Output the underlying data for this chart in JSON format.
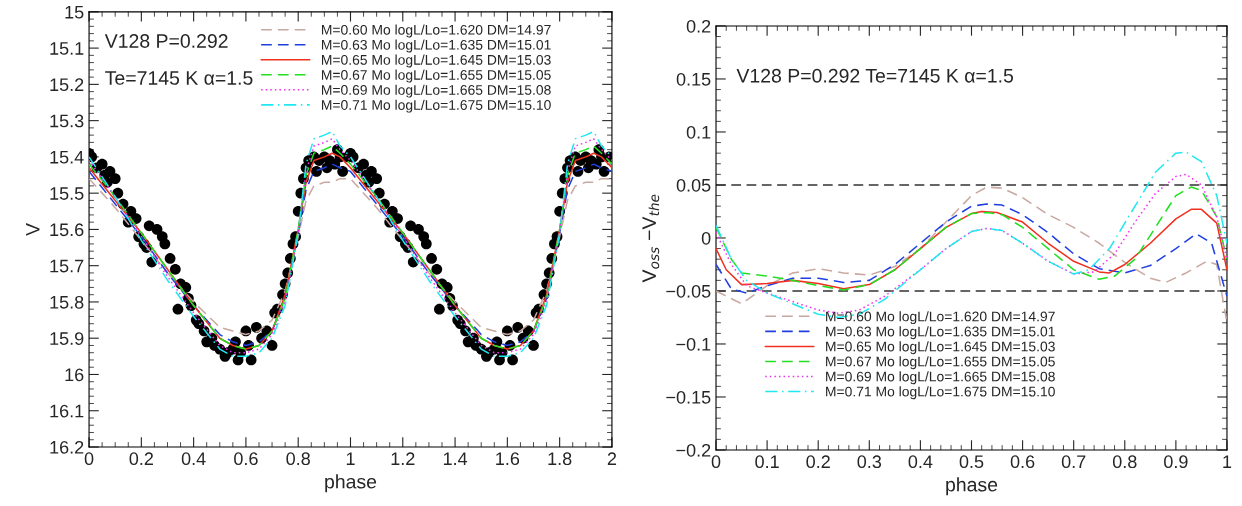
{
  "chart_data": [
    {
      "type": "line",
      "xlabel": "phase",
      "ylabel": "V",
      "xlim": [
        0,
        2
      ],
      "ylim": [
        16.2,
        15
      ],
      "xticks": [
        0,
        0.2,
        0.4,
        0.6,
        0.8,
        1,
        1.2,
        1.4,
        1.6,
        1.8,
        2
      ],
      "yticks": [
        15,
        15.1,
        15.2,
        15.3,
        15.4,
        15.5,
        15.6,
        15.7,
        15.8,
        15.9,
        16,
        16.1,
        16.2
      ],
      "legend": "top right",
      "annotations": [
        "V128 P=0.292",
        "Te=7145 K α=1.5"
      ],
      "series": [
        {
          "type": "scatter",
          "color": "#000000",
          "marker": "circle",
          "x": [
            0.0,
            0.01,
            0.03,
            0.05,
            0.06,
            0.07,
            0.08,
            0.1,
            0.11,
            0.13,
            0.15,
            0.16,
            0.18,
            0.19,
            0.21,
            0.22,
            0.23,
            0.24,
            0.26,
            0.28,
            0.29,
            0.31,
            0.33,
            0.34,
            0.35,
            0.37,
            0.38,
            0.39,
            0.41,
            0.42,
            0.44,
            0.45,
            0.47,
            0.48,
            0.5,
            0.52,
            0.53,
            0.55,
            0.56,
            0.57,
            0.58,
            0.6,
            0.61,
            0.62,
            0.64,
            0.66,
            0.68,
            0.7,
            0.71,
            0.72,
            0.74,
            0.75,
            0.76,
            0.77,
            0.78,
            0.79,
            0.8,
            0.81,
            0.82,
            0.83,
            0.84,
            0.86,
            0.87,
            0.88,
            0.9,
            0.91,
            0.92,
            0.94,
            0.95,
            0.96,
            0.97,
            0.99,
            1.0,
            1.01,
            1.03,
            1.05,
            1.06,
            1.07,
            1.08,
            1.1,
            1.11,
            1.13,
            1.15,
            1.16,
            1.18,
            1.19,
            1.21,
            1.22,
            1.23,
            1.24,
            1.26,
            1.28,
            1.29,
            1.31,
            1.33,
            1.34,
            1.35,
            1.37,
            1.38,
            1.39,
            1.41,
            1.42,
            1.44,
            1.45,
            1.47,
            1.48,
            1.5,
            1.52,
            1.53,
            1.55,
            1.56,
            1.57,
            1.58,
            1.6,
            1.61,
            1.62,
            1.64,
            1.66,
            1.68,
            1.7,
            1.71,
            1.72,
            1.74,
            1.75,
            1.76,
            1.77,
            1.78,
            1.79,
            1.8,
            1.81,
            1.82,
            1.83,
            1.84,
            1.86,
            1.87,
            1.88,
            1.9,
            1.91,
            1.92,
            1.94,
            1.95,
            1.96,
            1.97,
            1.99
          ],
          "values": [
            15.39,
            15.4,
            15.43,
            15.42,
            15.45,
            15.47,
            15.44,
            15.46,
            15.5,
            15.53,
            15.58,
            15.55,
            15.57,
            15.62,
            15.64,
            15.65,
            15.59,
            15.69,
            15.6,
            15.62,
            15.64,
            15.68,
            15.71,
            15.82,
            15.75,
            15.76,
            15.79,
            15.81,
            15.85,
            15.86,
            15.88,
            15.91,
            15.9,
            15.92,
            15.93,
            15.95,
            15.94,
            15.93,
            15.91,
            15.96,
            15.94,
            15.88,
            15.92,
            15.96,
            15.87,
            15.9,
            15.88,
            15.92,
            15.83,
            15.82,
            15.78,
            15.75,
            15.72,
            15.68,
            15.64,
            15.62,
            15.55,
            15.5,
            15.46,
            15.43,
            15.41,
            15.4,
            15.44,
            15.41,
            15.4,
            15.43,
            15.41,
            15.42,
            15.38,
            15.4,
            15.44,
            15.4,
            15.39,
            15.4,
            15.43,
            15.42,
            15.45,
            15.47,
            15.44,
            15.46,
            15.5,
            15.53,
            15.58,
            15.55,
            15.57,
            15.62,
            15.64,
            15.65,
            15.59,
            15.69,
            15.6,
            15.62,
            15.64,
            15.68,
            15.71,
            15.82,
            15.75,
            15.76,
            15.79,
            15.81,
            15.85,
            15.86,
            15.88,
            15.91,
            15.9,
            15.92,
            15.93,
            15.95,
            15.94,
            15.93,
            15.91,
            15.96,
            15.94,
            15.88,
            15.92,
            15.96,
            15.87,
            15.9,
            15.88,
            15.92,
            15.83,
            15.82,
            15.78,
            15.75,
            15.72,
            15.68,
            15.64,
            15.62,
            15.55,
            15.5,
            15.46,
            15.43,
            15.41,
            15.4,
            15.44,
            15.41,
            15.4,
            15.43,
            15.41,
            15.42,
            15.38,
            15.4,
            15.44,
            15.4
          ]
        },
        {
          "name": "M=0.60 Mo logL/Lo=1.620 DM=14.97",
          "color": "#c8a8a0",
          "line_style": "dashed",
          "x": [
            0,
            0.1,
            0.2,
            0.3,
            0.4,
            0.5,
            0.55,
            0.6,
            0.65,
            0.7,
            0.75,
            0.8,
            0.83,
            0.86,
            0.9,
            0.93,
            0.96,
            1,
            1.1,
            1.2,
            1.3,
            1.4,
            1.5,
            1.55,
            1.6,
            1.65,
            1.7,
            1.75,
            1.8,
            1.83,
            1.86,
            1.9,
            1.93,
            1.96,
            2
          ],
          "values": [
            15.46,
            15.54,
            15.63,
            15.72,
            15.8,
            15.87,
            15.88,
            15.89,
            15.88,
            15.85,
            15.77,
            15.62,
            15.52,
            15.48,
            15.47,
            15.47,
            15.46,
            15.46,
            15.54,
            15.63,
            15.72,
            15.8,
            15.87,
            15.88,
            15.89,
            15.88,
            15.85,
            15.77,
            15.62,
            15.52,
            15.48,
            15.47,
            15.47,
            15.46,
            15.46
          ]
        },
        {
          "name": "M=0.63 Mo logL/Lo=1.635 DM=15.01",
          "color": "#1f3fe0",
          "line_style": "dashed",
          "x": [
            0,
            0.1,
            0.2,
            0.3,
            0.4,
            0.5,
            0.55,
            0.6,
            0.65,
            0.7,
            0.75,
            0.8,
            0.83,
            0.86,
            0.9,
            0.93,
            0.96,
            1,
            1.1,
            1.2,
            1.3,
            1.4,
            1.5,
            1.55,
            1.6,
            1.65,
            1.7,
            1.75,
            1.8,
            1.83,
            1.86,
            1.9,
            1.93,
            1.96,
            2
          ],
          "values": [
            15.44,
            15.53,
            15.62,
            15.72,
            15.81,
            15.89,
            15.91,
            15.92,
            15.91,
            15.88,
            15.79,
            15.61,
            15.49,
            15.44,
            15.43,
            15.42,
            15.43,
            15.44,
            15.53,
            15.62,
            15.72,
            15.81,
            15.89,
            15.91,
            15.92,
            15.91,
            15.88,
            15.79,
            15.61,
            15.49,
            15.44,
            15.43,
            15.42,
            15.43,
            15.44
          ]
        },
        {
          "name": "M=0.65 Mo logL/Lo=1.645 DM=15.03",
          "color": "#f03020",
          "line_style": "solid",
          "x": [
            0,
            0.1,
            0.2,
            0.3,
            0.4,
            0.5,
            0.55,
            0.6,
            0.65,
            0.7,
            0.75,
            0.8,
            0.83,
            0.86,
            0.9,
            0.93,
            0.96,
            1,
            1.1,
            1.2,
            1.3,
            1.4,
            1.5,
            1.55,
            1.6,
            1.65,
            1.7,
            1.75,
            1.8,
            1.83,
            1.86,
            1.9,
            1.93,
            1.96,
            2
          ],
          "values": [
            15.43,
            15.52,
            15.61,
            15.71,
            15.81,
            15.9,
            15.92,
            15.93,
            15.92,
            15.88,
            15.78,
            15.6,
            15.47,
            15.41,
            15.4,
            15.39,
            15.4,
            15.43,
            15.52,
            15.61,
            15.71,
            15.81,
            15.9,
            15.92,
            15.93,
            15.92,
            15.88,
            15.78,
            15.6,
            15.47,
            15.41,
            15.4,
            15.39,
            15.4,
            15.43
          ]
        },
        {
          "name": "M=0.67 Mo logL/Lo=1.655 DM=15.05",
          "color": "#20e020",
          "line_style": "dashed",
          "x": [
            0,
            0.1,
            0.2,
            0.3,
            0.4,
            0.5,
            0.55,
            0.6,
            0.65,
            0.7,
            0.75,
            0.8,
            0.83,
            0.86,
            0.9,
            0.93,
            0.96,
            1,
            1.1,
            1.2,
            1.3,
            1.4,
            1.5,
            1.55,
            1.6,
            1.65,
            1.7,
            1.75,
            1.8,
            1.83,
            1.86,
            1.9,
            1.93,
            1.96,
            2
          ],
          "values": [
            15.42,
            15.51,
            15.61,
            15.71,
            15.81,
            15.9,
            15.92,
            15.93,
            15.92,
            15.88,
            15.79,
            15.6,
            15.45,
            15.39,
            15.38,
            15.37,
            15.39,
            15.42,
            15.51,
            15.61,
            15.71,
            15.81,
            15.9,
            15.92,
            15.93,
            15.92,
            15.88,
            15.79,
            15.6,
            15.45,
            15.39,
            15.38,
            15.37,
            15.39,
            15.42
          ]
        },
        {
          "name": "M=0.69 Mo logL/Lo=1.665 DM=15.08",
          "color": "#f030f0",
          "line_style": "dotted",
          "x": [
            0,
            0.1,
            0.2,
            0.3,
            0.4,
            0.5,
            0.55,
            0.6,
            0.65,
            0.7,
            0.75,
            0.8,
            0.83,
            0.86,
            0.9,
            0.93,
            0.96,
            1,
            1.1,
            1.2,
            1.3,
            1.4,
            1.5,
            1.55,
            1.6,
            1.65,
            1.7,
            1.75,
            1.8,
            1.83,
            1.86,
            1.9,
            1.93,
            1.96,
            2
          ],
          "values": [
            15.41,
            15.51,
            15.62,
            15.73,
            15.83,
            15.92,
            15.94,
            15.94,
            15.93,
            15.89,
            15.8,
            15.61,
            15.44,
            15.37,
            15.36,
            15.35,
            15.38,
            15.41,
            15.51,
            15.62,
            15.73,
            15.83,
            15.92,
            15.94,
            15.94,
            15.93,
            15.89,
            15.8,
            15.61,
            15.44,
            15.37,
            15.36,
            15.35,
            15.38,
            15.41
          ]
        },
        {
          "name": "M=0.71 Mo logL/Lo=1.675 DM=15.10",
          "color": "#20e8f0",
          "line_style": "dashdot",
          "x": [
            0,
            0.1,
            0.2,
            0.3,
            0.4,
            0.5,
            0.55,
            0.6,
            0.65,
            0.7,
            0.75,
            0.8,
            0.83,
            0.86,
            0.9,
            0.93,
            0.96,
            1,
            1.1,
            1.2,
            1.3,
            1.4,
            1.5,
            1.55,
            1.6,
            1.65,
            1.7,
            1.75,
            1.8,
            1.83,
            1.86,
            1.9,
            1.93,
            1.96,
            2
          ],
          "values": [
            15.4,
            15.51,
            15.63,
            15.74,
            15.84,
            15.93,
            15.95,
            15.95,
            15.94,
            15.9,
            15.81,
            15.61,
            15.42,
            15.35,
            15.34,
            15.33,
            15.37,
            15.4,
            15.51,
            15.63,
            15.74,
            15.84,
            15.93,
            15.95,
            15.95,
            15.94,
            15.9,
            15.81,
            15.61,
            15.42,
            15.35,
            15.34,
            15.33,
            15.37,
            15.4
          ]
        }
      ]
    },
    {
      "type": "line",
      "xlabel": "phase",
      "ylabel": "V$_{oss}$ −V$_{the}$",
      "xlim": [
        0,
        1
      ],
      "ylim": [
        -0.2,
        0.2
      ],
      "xticks": [
        0,
        0.1,
        0.2,
        0.3,
        0.4,
        0.5,
        0.6,
        0.7,
        0.8,
        0.9,
        1
      ],
      "yticks": [
        {
          "value": -0.2,
          "label": "−0.2"
        },
        {
          "value": -0.15,
          "label": "−0.15"
        },
        {
          "value": -0.1,
          "label": "−0.1"
        },
        {
          "value": -0.05,
          "label": "−0.05"
        },
        0,
        0.05,
        0.1,
        0.15,
        0.2
      ],
      "legend": "bottom left",
      "annotations": [
        "V128 P=0.292 Te=7145 K α=1.5"
      ],
      "ref_lines": [
        {
          "axis": "y",
          "value": 0.05,
          "color": "#333333",
          "line_style": "dashed"
        },
        {
          "axis": "y",
          "value": -0.05,
          "color": "#333333",
          "line_style": "dashed"
        }
      ],
      "series": [
        {
          "name": "M=0.60 Mo logL/Lo=1.620 DM=14.97",
          "color": "#c8a8a0",
          "line_style": "dashed",
          "x": [
            0,
            0.05,
            0.1,
            0.15,
            0.2,
            0.25,
            0.3,
            0.35,
            0.4,
            0.45,
            0.5,
            0.53,
            0.56,
            0.6,
            0.65,
            0.7,
            0.75,
            0.8,
            0.85,
            0.88,
            0.92,
            0.96,
            0.98,
            1.0
          ],
          "values": [
            -0.05,
            -0.062,
            -0.045,
            -0.033,
            -0.029,
            -0.033,
            -0.035,
            -0.027,
            -0.01,
            0.015,
            0.04,
            0.048,
            0.047,
            0.038,
            0.022,
            0.01,
            -0.005,
            -0.023,
            -0.038,
            -0.042,
            -0.033,
            -0.022,
            -0.025,
            -0.08
          ]
        },
        {
          "name": "M=0.63 Mo logL/Lo=1.635 DM=15.01",
          "color": "#1f3fe0",
          "line_style": "dashed",
          "x": [
            0,
            0.03,
            0.06,
            0.1,
            0.15,
            0.2,
            0.25,
            0.3,
            0.35,
            0.4,
            0.45,
            0.5,
            0.53,
            0.56,
            0.6,
            0.65,
            0.7,
            0.75,
            0.8,
            0.85,
            0.9,
            0.94,
            0.97,
            1.0
          ],
          "values": [
            -0.025,
            -0.048,
            -0.052,
            -0.045,
            -0.038,
            -0.038,
            -0.042,
            -0.04,
            -0.025,
            -0.005,
            0.015,
            0.03,
            0.032,
            0.031,
            0.022,
            0.005,
            -0.015,
            -0.029,
            -0.033,
            -0.026,
            -0.01,
            0.004,
            -0.005,
            -0.055
          ]
        },
        {
          "name": "M=0.65 Mo logL/Lo=1.645 DM=15.03",
          "color": "#f03020",
          "line_style": "solid",
          "x": [
            0,
            0.02,
            0.05,
            0.1,
            0.15,
            0.2,
            0.25,
            0.3,
            0.35,
            0.4,
            0.45,
            0.5,
            0.52,
            0.55,
            0.6,
            0.65,
            0.7,
            0.75,
            0.77,
            0.8,
            0.85,
            0.9,
            0.93,
            0.95,
            0.98,
            1.0
          ],
          "values": [
            -0.01,
            -0.03,
            -0.044,
            -0.043,
            -0.04,
            -0.043,
            -0.048,
            -0.044,
            -0.03,
            -0.01,
            0.01,
            0.023,
            0.025,
            0.024,
            0.015,
            -0.005,
            -0.022,
            -0.032,
            -0.033,
            -0.025,
            -0.005,
            0.018,
            0.027,
            0.027,
            0.014,
            -0.03
          ]
        },
        {
          "name": "M=0.67 Mo logL/Lo=1.655 DM=15.05",
          "color": "#20e020",
          "line_style": "dashed",
          "x": [
            0,
            0.03,
            0.05,
            0.1,
            0.15,
            0.2,
            0.25,
            0.3,
            0.35,
            0.4,
            0.45,
            0.5,
            0.53,
            0.56,
            0.6,
            0.65,
            0.7,
            0.75,
            0.78,
            0.82,
            0.86,
            0.9,
            0.93,
            0.95,
            0.98,
            1.0
          ],
          "values": [
            0.01,
            -0.02,
            -0.033,
            -0.036,
            -0.04,
            -0.045,
            -0.049,
            -0.044,
            -0.03,
            -0.01,
            0.01,
            0.023,
            0.024,
            0.022,
            0.01,
            -0.01,
            -0.03,
            -0.039,
            -0.036,
            -0.02,
            0.01,
            0.04,
            0.048,
            0.045,
            0.02,
            -0.02
          ]
        },
        {
          "name": "M=0.69 Mo logL/Lo=1.665 DM=15.08",
          "color": "#f030f0",
          "line_style": "dotted",
          "x": [
            0,
            0.03,
            0.06,
            0.1,
            0.15,
            0.2,
            0.24,
            0.28,
            0.33,
            0.4,
            0.45,
            0.5,
            0.53,
            0.56,
            0.6,
            0.65,
            0.7,
            0.74,
            0.78,
            0.82,
            0.86,
            0.9,
            0.92,
            0.95,
            0.98,
            1.0
          ],
          "values": [
            0.005,
            -0.025,
            -0.045,
            -0.052,
            -0.06,
            -0.068,
            -0.071,
            -0.068,
            -0.055,
            -0.03,
            -0.01,
            0.006,
            0.009,
            0.007,
            -0.005,
            -0.022,
            -0.034,
            -0.032,
            -0.015,
            0.015,
            0.042,
            0.058,
            0.06,
            0.05,
            0.02,
            -0.02
          ]
        },
        {
          "name": "M=0.71 Mo logL/Lo=1.675 DM=15.10",
          "color": "#20e8f0",
          "line_style": "dashdot",
          "x": [
            0,
            0.03,
            0.06,
            0.1,
            0.15,
            0.2,
            0.24,
            0.28,
            0.33,
            0.4,
            0.45,
            0.5,
            0.53,
            0.56,
            0.6,
            0.65,
            0.7,
            0.73,
            0.77,
            0.82,
            0.86,
            0.9,
            0.92,
            0.95,
            0.98,
            1.0
          ],
          "values": [
            0.012,
            -0.02,
            -0.04,
            -0.052,
            -0.062,
            -0.072,
            -0.075,
            -0.072,
            -0.058,
            -0.03,
            -0.01,
            0.006,
            0.009,
            0.007,
            -0.005,
            -0.022,
            -0.034,
            -0.03,
            -0.01,
            0.03,
            0.062,
            0.08,
            0.081,
            0.072,
            0.04,
            -0.005
          ]
        }
      ]
    }
  ]
}
